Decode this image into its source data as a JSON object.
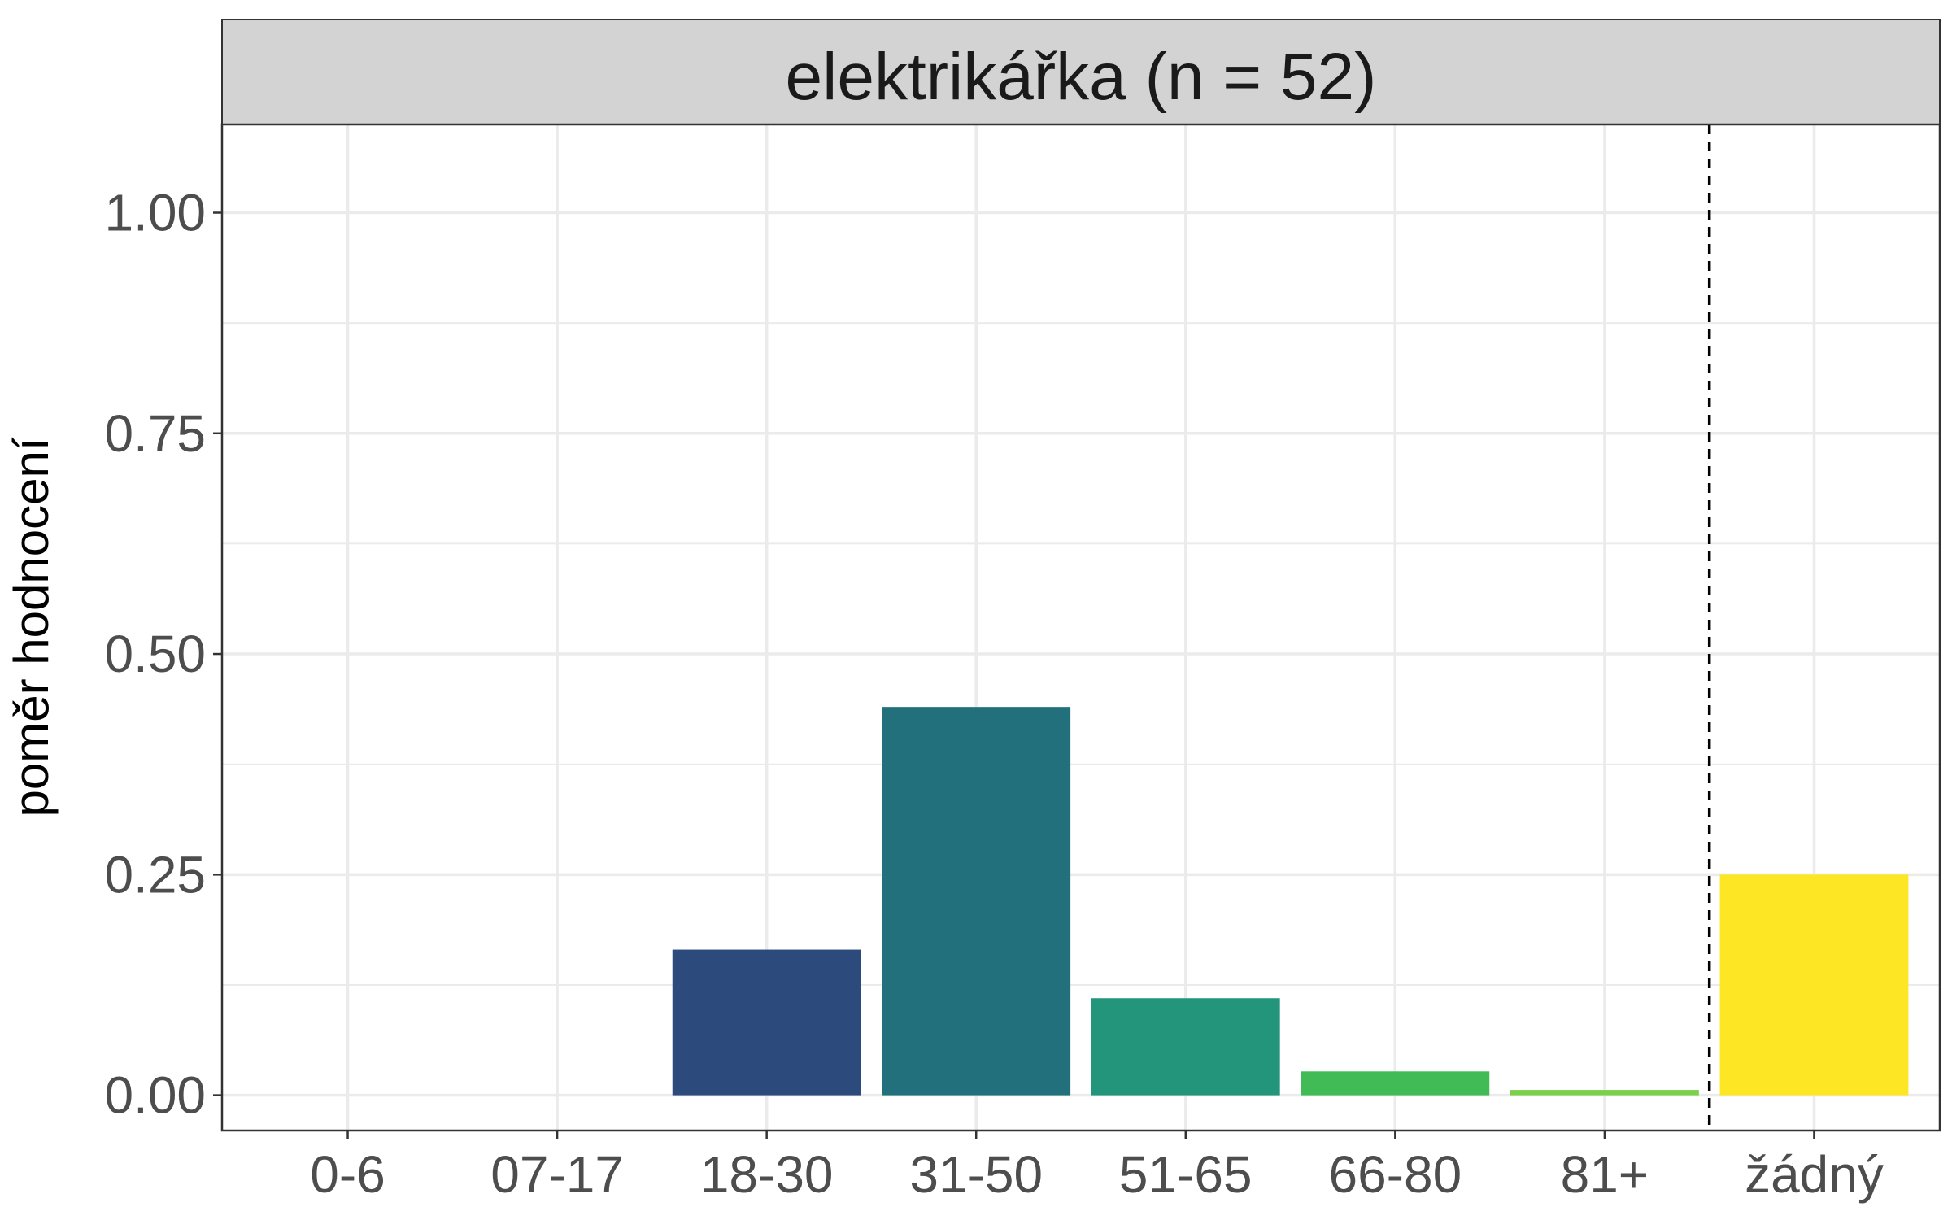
{
  "chart_data": {
    "type": "bar",
    "title": "elektrikářka (n = 52)",
    "xlabel": "",
    "ylabel": "poměr hodnocení",
    "ylim": [
      -0.04,
      1.1
    ],
    "y_ticks": [
      0.0,
      0.25,
      0.5,
      0.75,
      1.0
    ],
    "y_tick_labels": [
      "0.00",
      "0.25",
      "0.50",
      "0.75",
      "1.00"
    ],
    "categories": [
      "0-6",
      "07-17",
      "18-30",
      "31-50",
      "51-65",
      "66-80",
      "81+",
      "žádný"
    ],
    "values": [
      0.0,
      0.0,
      0.165,
      0.44,
      0.11,
      0.027,
      0.006,
      0.25
    ],
    "colors": [
      "#440154",
      "#46327e",
      "#2c4a7b",
      "#21707c",
      "#22957a",
      "#40bb56",
      "#7ad048",
      "#fde725"
    ],
    "grid": true,
    "separator_after": "81+",
    "separator_style": "dashed"
  }
}
